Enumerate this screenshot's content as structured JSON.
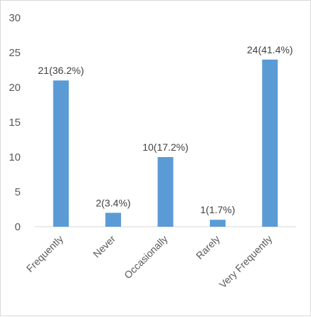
{
  "chart_data": {
    "type": "bar",
    "categories": [
      "Frequently",
      "Never",
      "Occasionally",
      "Rarely",
      "Very Frequently"
    ],
    "values": [
      21,
      2,
      10,
      1,
      24
    ],
    "data_labels": [
      "21(36.2%)",
      "2(3.4%)",
      "10(17.2%)",
      "1(1.7%)",
      "24(41.4%)"
    ],
    "y_ticks": [
      "0",
      "5",
      "10",
      "15",
      "20",
      "25",
      "30"
    ],
    "ylim": [
      0,
      30
    ],
    "grid": false,
    "bar_color": "#5b9bd5",
    "axis_color": "#d9d9d9"
  }
}
